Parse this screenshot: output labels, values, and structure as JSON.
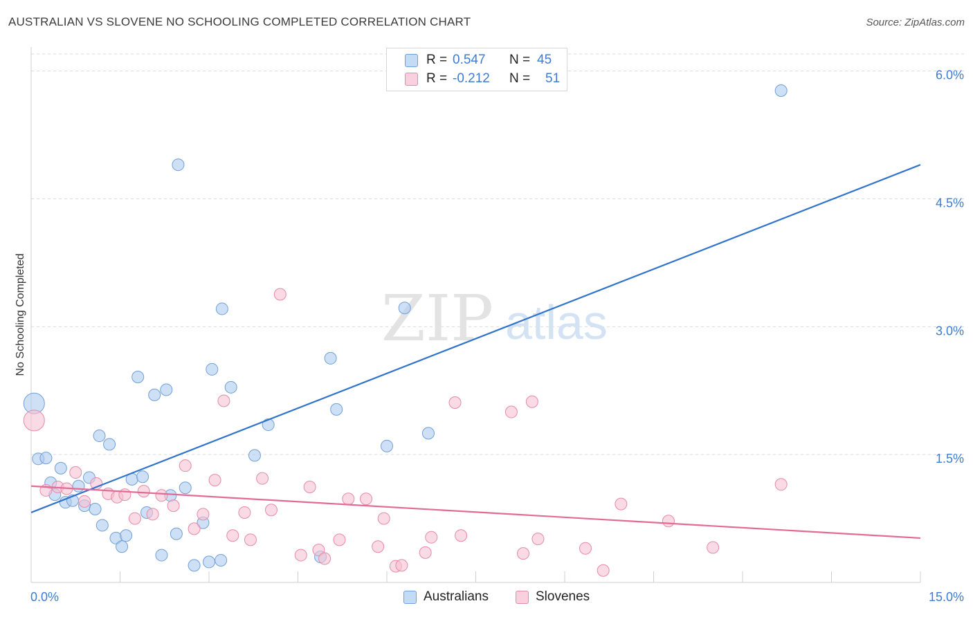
{
  "header": {
    "title": "AUSTRALIAN VS SLOVENE NO SCHOOLING COMPLETED CORRELATION CHART",
    "source": "Source: ZipAtlas.com"
  },
  "watermark": {
    "part1": "ZIP",
    "part2": "atlas"
  },
  "legend": {
    "australians": {
      "r_label": "R =",
      "r_value": "0.547",
      "n_label": "N =",
      "n_value": "45"
    },
    "slovenes": {
      "r_label": "R =",
      "r_value": "-0.212",
      "n_label": "N =",
      "n_value": "51"
    }
  },
  "bottom_legend": {
    "australians": "Australians",
    "slovenes": "Slovenes"
  },
  "colors": {
    "australians_fill": "#aecbf0",
    "australians_stroke": "#6f9fd8",
    "australians_line": "#2f73cc",
    "slovenes_fill": "#f7c1d2",
    "slovenes_stroke": "#e58aa8",
    "slovenes_line": "#e46a96",
    "value_text": "#3d7bd3",
    "grid": "#d9d9d9"
  },
  "chart_data": {
    "type": "scatter",
    "title": "AUSTRALIAN VS SLOVENE NO SCHOOLING COMPLETED CORRELATION CHART",
    "ylabel": "No Schooling Completed",
    "xlabel": "",
    "xlim": [
      0,
      15
    ],
    "ylim": [
      0,
      6.2
    ],
    "x_tick_labels": [
      "0.0%",
      "15.0%"
    ],
    "y_ticks": [
      1.5,
      3.0,
      4.5,
      6.0
    ],
    "y_tick_labels": [
      "1.5%",
      "3.0%",
      "4.5%",
      "6.0%"
    ],
    "grid": true,
    "legend_position": "top-center",
    "series": [
      {
        "name": "Australians",
        "r": 0.547,
        "n": 45,
        "trend": [
          [
            0,
            0.82
          ],
          [
            15,
            4.9
          ]
        ],
        "points": [
          [
            0.05,
            2.1,
            "big"
          ],
          [
            0.12,
            1.45
          ],
          [
            0.25,
            1.46
          ],
          [
            0.33,
            1.17
          ],
          [
            0.4,
            1.03
          ],
          [
            0.5,
            1.34
          ],
          [
            0.58,
            0.94
          ],
          [
            0.7,
            0.96
          ],
          [
            0.8,
            1.13
          ],
          [
            0.9,
            0.9
          ],
          [
            0.98,
            1.23
          ],
          [
            1.08,
            0.86
          ],
          [
            1.15,
            1.72
          ],
          [
            1.2,
            0.67
          ],
          [
            1.32,
            1.62
          ],
          [
            1.43,
            0.52
          ],
          [
            1.53,
            0.42
          ],
          [
            1.6,
            0.55
          ],
          [
            1.7,
            1.21
          ],
          [
            1.8,
            2.41
          ],
          [
            1.88,
            1.24
          ],
          [
            1.95,
            0.82
          ],
          [
            2.08,
            2.2
          ],
          [
            2.2,
            0.32
          ],
          [
            2.28,
            2.26
          ],
          [
            2.35,
            1.02
          ],
          [
            2.45,
            0.57
          ],
          [
            2.48,
            4.9
          ],
          [
            2.6,
            1.11
          ],
          [
            2.75,
            0.2
          ],
          [
            2.9,
            0.7
          ],
          [
            3.0,
            0.24
          ],
          [
            3.05,
            2.5
          ],
          [
            3.2,
            0.26
          ],
          [
            3.22,
            3.21
          ],
          [
            3.37,
            2.29
          ],
          [
            3.77,
            1.49
          ],
          [
            4.0,
            1.85
          ],
          [
            4.88,
            0.3
          ],
          [
            5.05,
            2.63
          ],
          [
            5.15,
            2.03
          ],
          [
            6.0,
            1.6
          ],
          [
            6.3,
            3.22
          ],
          [
            6.7,
            1.75
          ],
          [
            12.65,
            5.77
          ]
        ]
      },
      {
        "name": "Slovenes",
        "r": -0.212,
        "n": 51,
        "trend": [
          [
            0,
            1.13
          ],
          [
            15,
            0.52
          ]
        ],
        "points": [
          [
            0.05,
            1.9,
            "big"
          ],
          [
            0.25,
            1.08
          ],
          [
            0.45,
            1.12
          ],
          [
            0.6,
            1.1
          ],
          [
            0.75,
            1.29
          ],
          [
            0.9,
            0.95
          ],
          [
            1.1,
            1.16
          ],
          [
            1.3,
            1.04
          ],
          [
            1.45,
            1.0
          ],
          [
            1.58,
            1.03
          ],
          [
            1.75,
            0.75
          ],
          [
            1.9,
            1.07
          ],
          [
            2.05,
            0.8
          ],
          [
            2.2,
            1.02
          ],
          [
            2.4,
            0.9
          ],
          [
            2.6,
            1.37
          ],
          [
            2.75,
            0.63
          ],
          [
            2.9,
            0.8
          ],
          [
            3.1,
            1.2
          ],
          [
            3.25,
            2.13
          ],
          [
            3.4,
            0.55
          ],
          [
            3.6,
            0.82
          ],
          [
            3.7,
            0.5
          ],
          [
            3.9,
            1.22
          ],
          [
            4.05,
            0.85
          ],
          [
            4.2,
            3.38
          ],
          [
            4.55,
            0.32
          ],
          [
            4.7,
            1.12
          ],
          [
            4.85,
            0.38
          ],
          [
            4.95,
            0.28
          ],
          [
            5.2,
            0.5
          ],
          [
            5.35,
            0.98
          ],
          [
            5.65,
            0.98
          ],
          [
            5.85,
            0.42
          ],
          [
            5.95,
            0.75
          ],
          [
            6.15,
            0.19
          ],
          [
            6.25,
            0.2
          ],
          [
            6.65,
            0.35
          ],
          [
            6.75,
            0.53
          ],
          [
            7.15,
            2.11
          ],
          [
            7.25,
            0.55
          ],
          [
            8.1,
            2.0
          ],
          [
            8.3,
            0.34
          ],
          [
            8.45,
            2.12
          ],
          [
            8.55,
            0.51
          ],
          [
            9.35,
            0.4
          ],
          [
            9.65,
            0.14
          ],
          [
            9.95,
            0.92
          ],
          [
            10.75,
            0.72
          ],
          [
            11.5,
            0.41
          ],
          [
            12.65,
            1.15
          ]
        ]
      }
    ]
  }
}
